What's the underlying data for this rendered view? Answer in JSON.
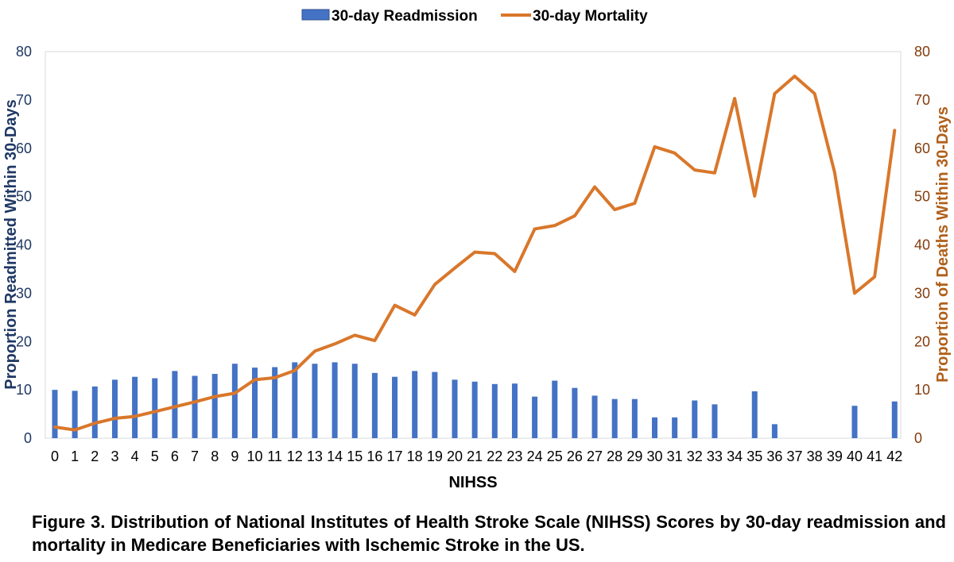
{
  "chart_data": {
    "type": "bar+line",
    "legend": {
      "position": "top",
      "bar_label": "30-day Readmission",
      "line_label": "30-day Mortality"
    },
    "xlabel": "NIHSS",
    "ylabel_left": "Proportion Readmitted Within 30-Days",
    "ylabel_right": "Proportion of Deaths Within 30-Days",
    "ylim_left": [
      0,
      80
    ],
    "ylim_right": [
      0,
      80
    ],
    "yticks": [
      "0",
      "10",
      "20",
      "30",
      "40",
      "50",
      "60",
      "70",
      "80"
    ],
    "categories": [
      "0",
      "1",
      "2",
      "3",
      "4",
      "5",
      "6",
      "7",
      "8",
      "9",
      "10",
      "11",
      "12",
      "13",
      "14",
      "15",
      "16",
      "17",
      "18",
      "19",
      "20",
      "21",
      "22",
      "23",
      "24",
      "25",
      "26",
      "27",
      "28",
      "29",
      "30",
      "31",
      "32",
      "33",
      "34",
      "35",
      "36",
      "37",
      "38",
      "39",
      "40",
      "41",
      "42"
    ],
    "series": [
      {
        "name": "30-day Readmission",
        "type": "bar",
        "axis": "left",
        "color": "#4472c4",
        "values": [
          10,
          9.8,
          10.7,
          12.1,
          12.7,
          12.4,
          13.9,
          12.9,
          13.3,
          15.4,
          14.6,
          14.7,
          15.7,
          15.4,
          15.7,
          15.4,
          13.5,
          12.7,
          13.9,
          13.7,
          12.1,
          11.7,
          11.2,
          11.3,
          8.6,
          11.9,
          10.4,
          8.8,
          8.1,
          8.1,
          4.3,
          4.3,
          7.8,
          7,
          null,
          9.7,
          2.9,
          null,
          null,
          null,
          6.7,
          null,
          7.6
        ]
      },
      {
        "name": "30-day Mortality",
        "type": "line",
        "axis": "right",
        "color": "#d9772b",
        "values": [
          2.3,
          1.7,
          3.1,
          4.1,
          4.5,
          5.5,
          6.5,
          7.5,
          8.6,
          9.3,
          12.1,
          12.5,
          14,
          18,
          19.5,
          21.3,
          20.2,
          27.5,
          25.5,
          31.8,
          35.2,
          38.5,
          38.2,
          34.5,
          43.3,
          44,
          46,
          52,
          47.3,
          48.6,
          60.3,
          59,
          55.5,
          54.9,
          70.3,
          50.1,
          71.3,
          74.9,
          71.3,
          55,
          30,
          33.4,
          63.7
        ]
      }
    ],
    "grid": false
  },
  "caption": "Figure 3. Distribution of National Institutes of Health Stroke Scale (NIHSS) Scores by 30-day readmission and mortality in Medicare Beneficiaries with Ischemic Stroke in the US."
}
